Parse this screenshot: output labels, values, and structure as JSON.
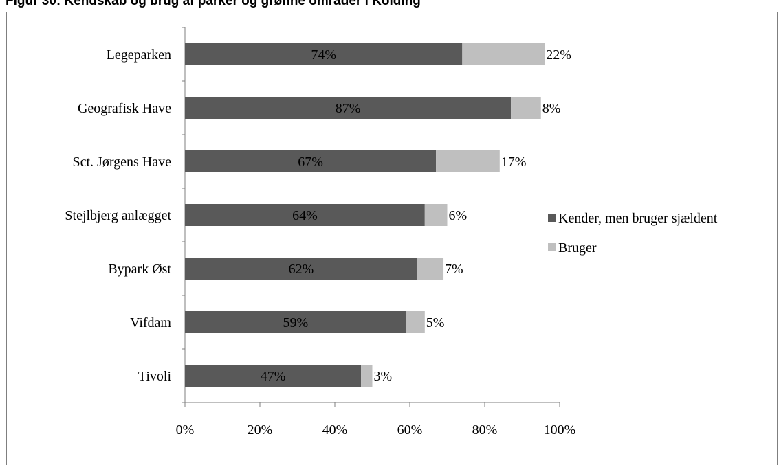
{
  "figure_title": "Figur 30: Kendskab og brug af parker og grønne områder i Kolding",
  "colors": {
    "series_kender": "#595959",
    "series_bruger": "#bfbfbf",
    "axis": "#7f7f7f"
  },
  "chart_data": {
    "type": "bar",
    "orientation": "horizontal",
    "stacked": true,
    "categories": [
      "Legeparken",
      "Geografisk Have",
      "Sct. Jørgens Have",
      "Stejlbjerg anlægget",
      "Bypark Øst",
      "Vifdam",
      "Tivoli"
    ],
    "series": [
      {
        "name": "Kender, men bruger sjældent",
        "values": [
          74,
          87,
          67,
          64,
          62,
          59,
          47
        ],
        "labels": [
          "74%",
          "87%",
          "67%",
          "64%",
          "62%",
          "59%",
          "47%"
        ]
      },
      {
        "name": "Bruger",
        "values": [
          22,
          8,
          17,
          6,
          7,
          5,
          3
        ],
        "labels": [
          "22%",
          "8%",
          "17%",
          "6%",
          "7%",
          "5%",
          "3%"
        ]
      }
    ],
    "xlim": [
      0,
      100
    ],
    "xticks": [
      "0%",
      "20%",
      "40%",
      "60%",
      "80%",
      "100%"
    ],
    "grid": false,
    "legend_position": "right"
  }
}
